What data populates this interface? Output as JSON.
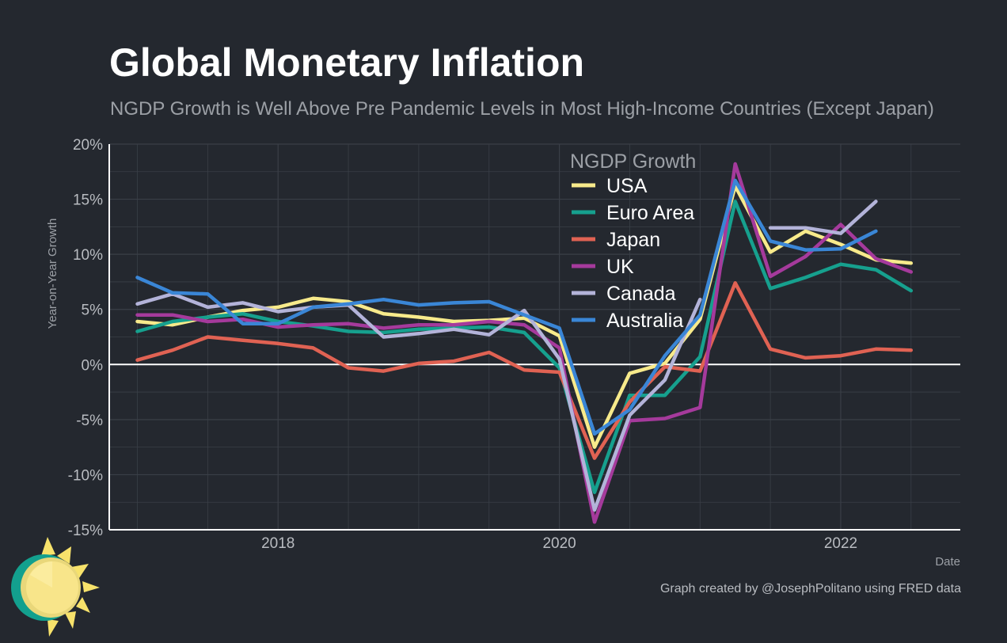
{
  "header": {
    "title": "Global Monetary Inflation",
    "subtitle": "NGDP Growth is Well Above Pre Pandemic Levels in Most High-Income Countries (Except Japan)"
  },
  "footer": {
    "credit": "Graph created by @JosephPolitano using FRED data"
  },
  "colors": {
    "background": "#24282f",
    "grid": "#3a3f47",
    "axis": "#ffffff",
    "tick_text": "#b9bcc1"
  },
  "chart_data": {
    "type": "line",
    "title": "Global Monetary Inflation",
    "subtitle": "NGDP Growth is Well Above Pre Pandemic Levels in Most High-Income Countries (Except Japan)",
    "xlabel": "Date",
    "ylabel": "Year-on-Year Growth",
    "xlim": [
      2016.8,
      2022.85
    ],
    "ylim": [
      -15,
      20
    ],
    "x_ticks": [
      2018,
      2020,
      2022
    ],
    "x_tick_labels": [
      "2018",
      "2020",
      "2022"
    ],
    "y_ticks": [
      -15,
      -10,
      -5,
      0,
      5,
      10,
      15,
      20
    ],
    "y_tick_labels": [
      "-15%",
      "-10%",
      "-5%",
      "0%",
      "5%",
      "10%",
      "15%",
      "20%"
    ],
    "grid": true,
    "zero_line": true,
    "legend_title": "NGDP Growth",
    "legend_position": "top-right",
    "x": [
      2017.0,
      2017.25,
      2017.5,
      2017.75,
      2018.0,
      2018.25,
      2018.5,
      2018.75,
      2019.0,
      2019.25,
      2019.5,
      2019.75,
      2020.0,
      2020.25,
      2020.5,
      2020.75,
      2021.0,
      2021.25,
      2021.5,
      2021.75,
      2022.0,
      2022.25,
      2022.5
    ],
    "series": [
      {
        "name": "USA",
        "color": "#f7ea8b",
        "values": [
          3.9,
          3.6,
          4.3,
          4.9,
          5.2,
          6.0,
          5.7,
          4.6,
          4.3,
          3.9,
          4.0,
          4.2,
          2.6,
          -7.5,
          -0.8,
          0.1,
          4.1,
          16.2,
          10.2,
          12.1,
          10.9,
          9.5,
          9.2
        ]
      },
      {
        "name": "Euro Area",
        "color": "#16a08e",
        "values": [
          3.0,
          3.9,
          4.3,
          4.6,
          3.9,
          3.5,
          3.0,
          2.9,
          3.2,
          3.3,
          3.4,
          2.9,
          -0.3,
          -11.6,
          -2.8,
          -2.8,
          0.7,
          14.8,
          6.9,
          7.9,
          9.1,
          8.6,
          6.7
        ]
      },
      {
        "name": "Japan",
        "color": "#e06253",
        "values": [
          0.4,
          1.3,
          2.5,
          2.2,
          1.9,
          1.5,
          -0.3,
          -0.6,
          0.1,
          0.3,
          1.1,
          -0.5,
          -0.7,
          -8.5,
          -3.4,
          -0.2,
          -0.6,
          7.4,
          1.4,
          0.6,
          0.8,
          1.4,
          1.3
        ]
      },
      {
        "name": "UK",
        "color": "#a53a9c",
        "values": [
          4.5,
          4.5,
          3.9,
          4.1,
          3.4,
          3.6,
          3.7,
          3.3,
          3.6,
          3.6,
          3.9,
          3.6,
          1.5,
          -14.3,
          -5.1,
          -4.9,
          -3.9,
          18.2,
          8.0,
          9.8,
          12.7,
          9.6,
          8.4
        ]
      },
      {
        "name": "Canada",
        "color": "#b3b3d9",
        "values": [
          5.5,
          6.4,
          5.2,
          5.6,
          4.8,
          5.2,
          5.4,
          2.5,
          2.8,
          3.2,
          2.7,
          4.9,
          0.5,
          -13.2,
          -4.6,
          -1.4,
          5.9,
          null,
          12.4,
          12.4,
          11.9,
          14.8,
          null
        ]
      },
      {
        "name": "Australia",
        "color": "#3a86d6",
        "values": [
          7.9,
          6.5,
          6.4,
          3.7,
          3.7,
          5.2,
          5.5,
          5.9,
          5.4,
          5.6,
          5.7,
          4.5,
          3.3,
          -6.3,
          -4.1,
          0.8,
          4.5,
          16.7,
          11.2,
          10.4,
          10.5,
          12.1,
          null
        ]
      }
    ]
  }
}
